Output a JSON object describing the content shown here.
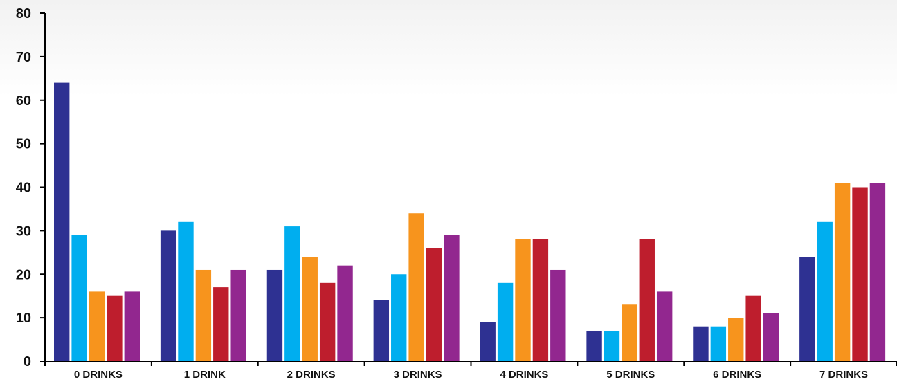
{
  "chart_data": {
    "type": "bar",
    "title": "",
    "xlabel": "",
    "ylabel": "",
    "ylim": [
      0,
      80
    ],
    "yticks": [
      0,
      10,
      20,
      30,
      40,
      50,
      60,
      70,
      80
    ],
    "grid": false,
    "legend": "none",
    "categories": [
      "0 DRINKS",
      "1 DRINK",
      "2 DRINKS",
      "3 DRINKS",
      "4 DRINKS",
      "5 DRINKS",
      "6 DRINKS",
      "7 DRINKS"
    ],
    "series": [
      {
        "color": "#2e3192",
        "values": [
          64,
          30,
          21,
          14,
          9,
          7,
          8,
          24
        ]
      },
      {
        "color": "#00aeef",
        "values": [
          29,
          32,
          31,
          20,
          18,
          7,
          8,
          32
        ]
      },
      {
        "color": "#f7941d",
        "values": [
          16,
          21,
          24,
          34,
          28,
          13,
          10,
          41
        ]
      },
      {
        "color": "#be1e2d",
        "values": [
          15,
          17,
          18,
          26,
          28,
          28,
          15,
          40
        ]
      },
      {
        "color": "#92278f",
        "values": [
          16,
          21,
          22,
          29,
          21,
          16,
          11,
          41
        ]
      }
    ]
  }
}
